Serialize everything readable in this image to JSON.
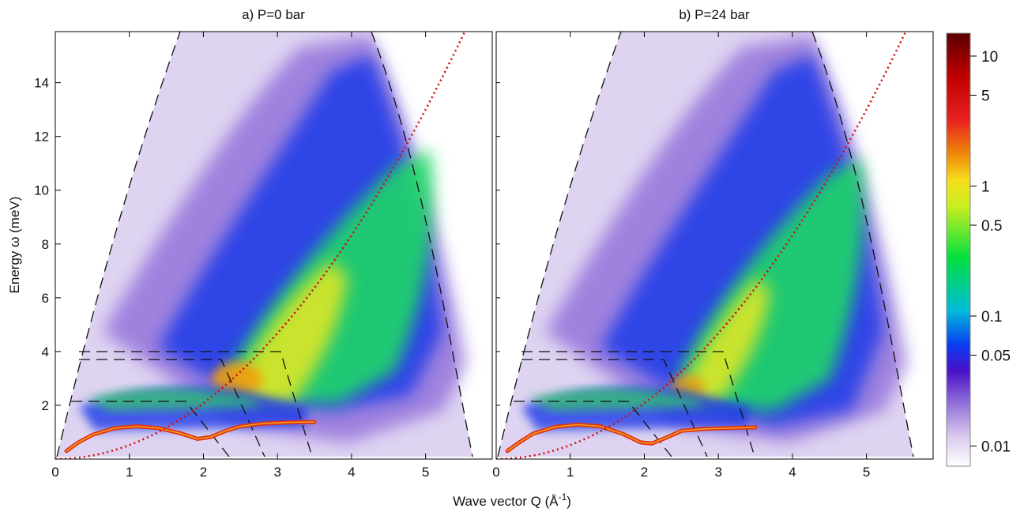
{
  "figure": {
    "xlabel": "Wave vector Q  (Å",
    "xlabel_sup": "-1",
    "xlabel_tail": ")",
    "ylabel": "Energy ω  (meV)"
  },
  "colorbar": {
    "ticks": [
      "10",
      "5",
      "1",
      "0.5",
      "0.1",
      "0.05",
      "0.01"
    ],
    "tick_values": [
      10,
      5,
      1,
      0.5,
      0.1,
      0.05,
      0.01
    ],
    "range": [
      0.007,
      15
    ],
    "scale": "log",
    "colors": [
      "#ffffff",
      "#d8c8ec",
      "#8c6ad8",
      "#4a10c8",
      "#0a3cf0",
      "#00bcd8",
      "#00e040",
      "#c8ee20",
      "#f6de1c",
      "#f08a0a",
      "#e82020",
      "#c00000",
      "#5a0000"
    ]
  },
  "chart_data": [
    {
      "type": "heatmap",
      "title": "a) P=0 bar",
      "xlim": [
        0,
        5.9
      ],
      "ylim": [
        0,
        15.9
      ],
      "xticks": [
        "0",
        "1",
        "2",
        "3",
        "4",
        "5"
      ],
      "yticks": [
        "2",
        "4",
        "6",
        "8",
        "10",
        "12",
        "14"
      ],
      "ytick_values": [
        2,
        4,
        6,
        8,
        10,
        12,
        14
      ],
      "dispersion": {
        "q": [
          0.15,
          0.3,
          0.5,
          0.8,
          1.1,
          1.4,
          1.7,
          1.92,
          2.1,
          2.3,
          2.5,
          2.8,
          3.1,
          3.5
        ],
        "omega": [
          0.3,
          0.6,
          0.9,
          1.15,
          1.22,
          1.15,
          0.95,
          0.75,
          0.82,
          1.05,
          1.22,
          1.32,
          1.36,
          1.38
        ]
      },
      "free_particle_curve": {
        "q": [
          0,
          1,
          2,
          3,
          4,
          5,
          5.6
        ],
        "omega": [
          0,
          0.52,
          2.08,
          4.68,
          8.32,
          13.0,
          16.3
        ]
      },
      "colorbar_ticks": [
        "10",
        "5",
        "1",
        "0.5",
        "0.1",
        "0.05",
        "0.01"
      ]
    },
    {
      "type": "heatmap",
      "title": "b) P=24 bar",
      "xlim": [
        0,
        5.9
      ],
      "ylim": [
        0,
        15.9
      ],
      "xticks": [
        "0",
        "1",
        "2",
        "3",
        "4",
        "5"
      ],
      "dispersion": {
        "q": [
          0.15,
          0.3,
          0.5,
          0.8,
          1.1,
          1.4,
          1.7,
          1.95,
          2.1,
          2.3,
          2.5,
          2.8,
          3.1,
          3.5
        ],
        "omega": [
          0.3,
          0.6,
          0.95,
          1.2,
          1.28,
          1.22,
          0.95,
          0.62,
          0.58,
          0.8,
          1.05,
          1.12,
          1.15,
          1.18
        ]
      },
      "free_particle_curve": {
        "q": [
          0,
          1,
          2,
          3,
          4,
          5,
          5.6
        ],
        "omega": [
          0,
          0.52,
          2.08,
          4.68,
          8.32,
          13.0,
          16.3
        ]
      }
    }
  ]
}
